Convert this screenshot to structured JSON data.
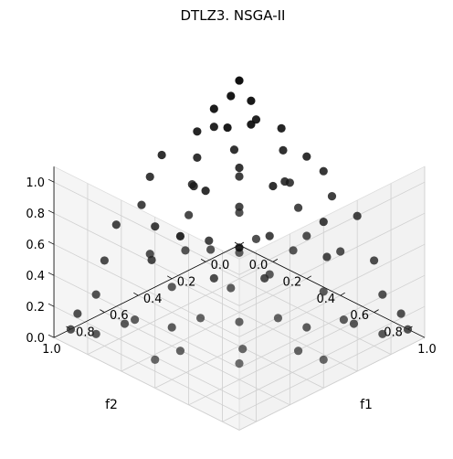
{
  "chart_data": {
    "type": "scatter3d",
    "title": "DTLZ3. NSGA-II",
    "xlabel": "f1",
    "ylabel": "f2",
    "zlabel": "",
    "x_ticks": [
      "0.0",
      "0.2",
      "0.4",
      "0.6",
      "0.8",
      "1.0"
    ],
    "y_ticks": [
      "0.0",
      "0.2",
      "0.4",
      "0.6",
      "0.8",
      "1.0"
    ],
    "z_ticks": [
      "0.0",
      "0.2",
      "0.4",
      "0.6",
      "0.8",
      "1.0"
    ],
    "xlim": [
      0,
      1.1
    ],
    "ylim": [
      0,
      1.1
    ],
    "zlim": [
      0,
      1.1
    ],
    "grid": true,
    "marker_color": "#000000",
    "points": [
      [
        0.02,
        0.02,
        1.08
      ],
      [
        0.05,
        0.1,
        1.04
      ],
      [
        0.12,
        0.05,
        1.02
      ],
      [
        0.03,
        0.18,
        0.99
      ],
      [
        0.2,
        0.1,
        0.97
      ],
      [
        0.1,
        0.25,
        0.95
      ],
      [
        0.3,
        0.05,
        0.94
      ],
      [
        0.05,
        0.3,
        0.92
      ],
      [
        0.25,
        0.28,
        0.9
      ],
      [
        0.38,
        0.12,
        0.88
      ],
      [
        0.15,
        0.4,
        0.86
      ],
      [
        0.45,
        0.05,
        0.84
      ],
      [
        0.35,
        0.35,
        0.82
      ],
      [
        0.02,
        0.48,
        0.85
      ],
      [
        0.5,
        0.2,
        0.78
      ],
      [
        0.22,
        0.5,
        0.78
      ],
      [
        0.55,
        0.05,
        0.8
      ],
      [
        0.05,
        0.58,
        0.78
      ],
      [
        0.42,
        0.42,
        0.7
      ],
      [
        0.6,
        0.25,
        0.7
      ],
      [
        0.3,
        0.6,
        0.68
      ],
      [
        0.65,
        0.1,
        0.72
      ],
      [
        0.1,
        0.68,
        0.68
      ],
      [
        0.55,
        0.45,
        0.58
      ],
      [
        0.7,
        0.3,
        0.6
      ],
      [
        0.45,
        0.62,
        0.55
      ],
      [
        0.75,
        0.05,
        0.62
      ],
      [
        0.05,
        0.78,
        0.58
      ],
      [
        0.68,
        0.5,
        0.45
      ],
      [
        0.8,
        0.2,
        0.5
      ],
      [
        0.25,
        0.78,
        0.5
      ],
      [
        0.6,
        0.65,
        0.4
      ],
      [
        0.85,
        0.35,
        0.35
      ],
      [
        0.4,
        0.8,
        0.38
      ],
      [
        0.88,
        0.08,
        0.42
      ],
      [
        0.08,
        0.88,
        0.42
      ],
      [
        0.78,
        0.55,
        0.25
      ],
      [
        0.55,
        0.78,
        0.25
      ],
      [
        0.92,
        0.3,
        0.18
      ],
      [
        0.3,
        0.92,
        0.18
      ],
      [
        0.95,
        0.1,
        0.25
      ],
      [
        0.1,
        0.95,
        0.25
      ],
      [
        0.72,
        0.7,
        0.1
      ],
      [
        0.98,
        0.02,
        0.1
      ],
      [
        0.02,
        0.98,
        0.1
      ],
      [
        1.0,
        0.15,
        0.05
      ],
      [
        0.15,
        1.0,
        0.05
      ],
      [
        0.85,
        0.5,
        0.05
      ],
      [
        0.5,
        0.85,
        0.05
      ],
      [
        1.02,
        0.02,
        0.02
      ],
      [
        0.02,
        1.02,
        0.02
      ],
      [
        0.6,
        0.6,
        0.6
      ],
      [
        0.35,
        0.15,
        0.65
      ],
      [
        0.15,
        0.35,
        0.62
      ],
      [
        0.48,
        0.3,
        0.48
      ],
      [
        0.3,
        0.48,
        0.45
      ],
      [
        0.62,
        0.12,
        0.55
      ],
      [
        0.12,
        0.62,
        0.52
      ],
      [
        0.4,
        0.55,
        0.3
      ],
      [
        0.55,
        0.4,
        0.3
      ],
      [
        0.7,
        0.18,
        0.4
      ],
      [
        0.18,
        0.7,
        0.38
      ],
      [
        0.8,
        0.4,
        0.12
      ],
      [
        0.4,
        0.8,
        0.12
      ],
      [
        0.9,
        0.22,
        0.1
      ],
      [
        0.22,
        0.9,
        0.1
      ],
      [
        0.66,
        0.66,
        0.22
      ],
      [
        0.28,
        0.28,
        0.8
      ],
      [
        0.08,
        0.15,
        0.88
      ],
      [
        0.15,
        0.08,
        0.9
      ],
      [
        0.45,
        0.18,
        0.75
      ],
      [
        0.18,
        0.45,
        0.72
      ],
      [
        0.75,
        0.75,
        0.05
      ],
      [
        0.95,
        0.45,
        0.02
      ],
      [
        0.45,
        0.95,
        0.02
      ],
      [
        0.38,
        0.7,
        0.55
      ],
      [
        0.7,
        0.38,
        0.55
      ],
      [
        0.2,
        0.2,
        0.2
      ],
      [
        0.5,
        0.5,
        0.75
      ],
      [
        0.05,
        0.4,
        0.3
      ]
    ]
  }
}
